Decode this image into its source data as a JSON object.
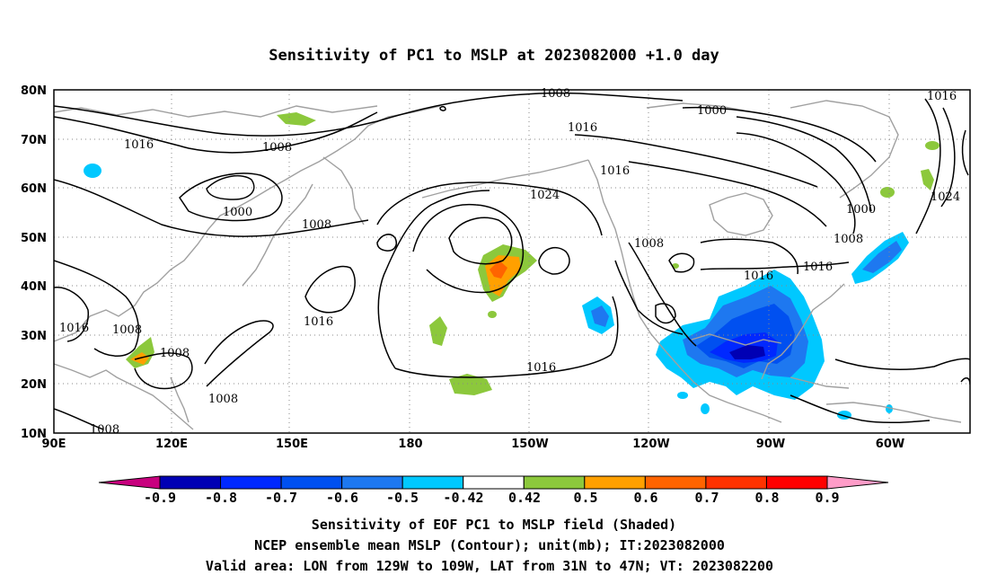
{
  "title": "Sensitivity of PC1 to MSLP at 2023082000 +1.0 day",
  "map": {
    "lon_ticks": [
      "90E",
      "120E",
      "150E",
      "180",
      "150W",
      "120W",
      "90W",
      "60W"
    ],
    "lat_ticks": [
      "80N",
      "70N",
      "60N",
      "50N",
      "40N",
      "30N",
      "20N",
      "10N"
    ],
    "contour_labels": [
      "1016",
      "1008",
      "1000",
      "1008",
      "1016",
      "1008",
      "1008",
      "1008",
      "1008",
      "1016",
      "1008",
      "1024",
      "1016",
      "1016",
      "1016",
      "1000",
      "1008",
      "1016",
      "1016",
      "1000",
      "1008",
      "1016",
      "1024"
    ],
    "colors": {
      "land_outline": "#a0a0a0",
      "grid": "#888888",
      "contour": "#000000"
    }
  },
  "colorbar": {
    "labels": [
      "-0.9",
      "-0.8",
      "-0.7",
      "-0.6",
      "-0.5",
      "-0.42",
      "0.42",
      "0.5",
      "0.6",
      "0.7",
      "0.8",
      "0.9"
    ],
    "colors": [
      "#c8007e",
      "#0000b4",
      "#0028ff",
      "#0050f0",
      "#1e78f0",
      "#00c8ff",
      "#ffffff",
      "#8cc83c",
      "#ffa000",
      "#ff6400",
      "#ff3200",
      "#ff0000",
      "#ff9cc8"
    ]
  },
  "footer": {
    "line1": "Sensitivity of EOF PC1 to MSLP field (Shaded)",
    "line2": "NCEP ensemble mean MSLP (Contour); unit(mb); IT:2023082000",
    "line3": "Valid area: LON from 129W to 109W, LAT from 31N to 47N; VT: 2023082200"
  }
}
